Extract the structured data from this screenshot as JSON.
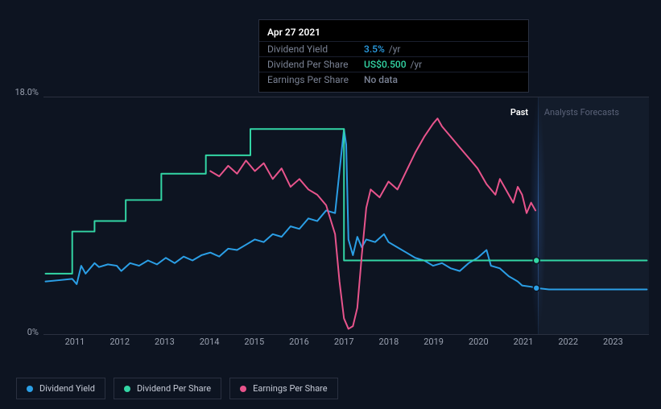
{
  "tooltip": {
    "date": "Apr 27 2021",
    "rows": [
      {
        "label": "Dividend Yield",
        "value": "3.5%",
        "unit": "/yr",
        "color": "#2b9fe6"
      },
      {
        "label": "Dividend Per Share",
        "value": "US$0.500",
        "unit": "/yr",
        "color": "#33d6a5"
      },
      {
        "label": "Earnings Per Share",
        "value": "No data",
        "unit": "",
        "color": "#7a8294"
      }
    ]
  },
  "chart": {
    "background": "#0d1421",
    "grid_color": "#2a3040",
    "y_axis": {
      "min": 0,
      "max": 18,
      "labels": [
        {
          "v": 0,
          "t": "0%"
        },
        {
          "v": 18,
          "t": "18.0%"
        }
      ]
    },
    "x_axis": {
      "min": 2010.3,
      "max": 2023.8,
      "ticks": [
        2011,
        2012,
        2013,
        2014,
        2015,
        2016,
        2017,
        2018,
        2019,
        2020,
        2021,
        2022,
        2023
      ]
    },
    "past_end_x": 2021.32,
    "sections": {
      "past": "Past",
      "forecast": "Analysts Forecasts"
    },
    "cursor_x": 2021.32,
    "series": [
      {
        "name": "Dividend Yield",
        "color": "#2b9fe6",
        "end_dot": true,
        "points": [
          [
            2010.3,
            4.0
          ],
          [
            2010.6,
            4.1
          ],
          [
            2010.9,
            4.2
          ],
          [
            2011.0,
            3.8
          ],
          [
            2011.1,
            5.2
          ],
          [
            2011.2,
            4.6
          ],
          [
            2011.4,
            5.4
          ],
          [
            2011.5,
            5.1
          ],
          [
            2011.7,
            5.3
          ],
          [
            2011.9,
            5.2
          ],
          [
            2012.0,
            4.8
          ],
          [
            2012.2,
            5.4
          ],
          [
            2012.4,
            5.2
          ],
          [
            2012.6,
            5.6
          ],
          [
            2012.8,
            5.3
          ],
          [
            2013.0,
            5.8
          ],
          [
            2013.2,
            5.4
          ],
          [
            2013.4,
            5.9
          ],
          [
            2013.6,
            5.6
          ],
          [
            2013.8,
            6.0
          ],
          [
            2014.0,
            6.2
          ],
          [
            2014.2,
            5.9
          ],
          [
            2014.4,
            6.5
          ],
          [
            2014.6,
            6.4
          ],
          [
            2014.8,
            6.8
          ],
          [
            2015.0,
            7.2
          ],
          [
            2015.2,
            7.0
          ],
          [
            2015.4,
            7.6
          ],
          [
            2015.6,
            7.4
          ],
          [
            2015.8,
            8.2
          ],
          [
            2016.0,
            8.0
          ],
          [
            2016.2,
            8.8
          ],
          [
            2016.4,
            8.6
          ],
          [
            2016.6,
            9.4
          ],
          [
            2016.8,
            9.2
          ],
          [
            2017.0,
            15.6
          ],
          [
            2017.05,
            14.4
          ],
          [
            2017.1,
            7.2
          ],
          [
            2017.2,
            6.0
          ],
          [
            2017.3,
            7.4
          ],
          [
            2017.4,
            6.6
          ],
          [
            2017.5,
            7.2
          ],
          [
            2017.7,
            7.0
          ],
          [
            2017.9,
            7.6
          ],
          [
            2018.0,
            7.0
          ],
          [
            2018.2,
            6.6
          ],
          [
            2018.4,
            6.2
          ],
          [
            2018.6,
            5.8
          ],
          [
            2018.8,
            5.6
          ],
          [
            2019.0,
            5.2
          ],
          [
            2019.2,
            5.4
          ],
          [
            2019.4,
            5.0
          ],
          [
            2019.6,
            4.8
          ],
          [
            2019.8,
            5.4
          ],
          [
            2020.0,
            5.8
          ],
          [
            2020.2,
            6.4
          ],
          [
            2020.3,
            5.2
          ],
          [
            2020.5,
            5.0
          ],
          [
            2020.7,
            4.4
          ],
          [
            2020.9,
            4.0
          ],
          [
            2021.0,
            3.7
          ],
          [
            2021.2,
            3.6
          ],
          [
            2021.32,
            3.5
          ],
          [
            2021.6,
            3.4
          ],
          [
            2022.0,
            3.4
          ],
          [
            2022.5,
            3.4
          ],
          [
            2023.0,
            3.4
          ],
          [
            2023.8,
            3.4
          ]
        ]
      },
      {
        "name": "Dividend Per Share",
        "color": "#33d6a5",
        "end_dot": true,
        "points": [
          [
            2010.3,
            4.6
          ],
          [
            2010.9,
            4.6
          ],
          [
            2010.9,
            7.8
          ],
          [
            2011.4,
            7.8
          ],
          [
            2011.4,
            8.6
          ],
          [
            2012.1,
            8.6
          ],
          [
            2012.1,
            10.2
          ],
          [
            2012.9,
            10.2
          ],
          [
            2012.9,
            12.2
          ],
          [
            2013.9,
            12.2
          ],
          [
            2013.9,
            13.6
          ],
          [
            2014.9,
            13.6
          ],
          [
            2014.9,
            15.6
          ],
          [
            2017.0,
            15.6
          ],
          [
            2017.0,
            5.6
          ],
          [
            2021.32,
            5.6
          ],
          [
            2023.8,
            5.6
          ]
        ]
      },
      {
        "name": "Earnings Per Share",
        "color": "#e8548c",
        "end_dot": false,
        "points": [
          [
            2014.0,
            12.4
          ],
          [
            2014.2,
            12.0
          ],
          [
            2014.4,
            12.8
          ],
          [
            2014.6,
            12.2
          ],
          [
            2014.8,
            13.2
          ],
          [
            2015.0,
            12.4
          ],
          [
            2015.2,
            13.0
          ],
          [
            2015.4,
            11.8
          ],
          [
            2015.6,
            12.6
          ],
          [
            2015.8,
            11.2
          ],
          [
            2016.0,
            11.8
          ],
          [
            2016.2,
            11.0
          ],
          [
            2016.4,
            10.6
          ],
          [
            2016.6,
            9.8
          ],
          [
            2016.8,
            7.6
          ],
          [
            2016.9,
            4.0
          ],
          [
            2017.0,
            1.2
          ],
          [
            2017.1,
            0.4
          ],
          [
            2017.2,
            0.6
          ],
          [
            2017.3,
            2.0
          ],
          [
            2017.4,
            6.0
          ],
          [
            2017.5,
            9.6
          ],
          [
            2017.6,
            11.0
          ],
          [
            2017.8,
            10.4
          ],
          [
            2018.0,
            11.6
          ],
          [
            2018.2,
            11.0
          ],
          [
            2018.4,
            12.4
          ],
          [
            2018.6,
            13.8
          ],
          [
            2018.8,
            15.0
          ],
          [
            2019.0,
            16.0
          ],
          [
            2019.1,
            16.4
          ],
          [
            2019.2,
            15.8
          ],
          [
            2019.4,
            15.0
          ],
          [
            2019.6,
            14.2
          ],
          [
            2019.8,
            13.4
          ],
          [
            2020.0,
            12.6
          ],
          [
            2020.2,
            11.4
          ],
          [
            2020.4,
            10.6
          ],
          [
            2020.5,
            11.8
          ],
          [
            2020.6,
            11.2
          ],
          [
            2020.8,
            10.0
          ],
          [
            2020.9,
            11.2
          ],
          [
            2021.0,
            10.6
          ],
          [
            2021.1,
            9.2
          ],
          [
            2021.2,
            10.0
          ],
          [
            2021.3,
            9.4
          ]
        ]
      }
    ]
  },
  "legend": [
    {
      "label": "Dividend Yield",
      "color": "#2b9fe6"
    },
    {
      "label": "Dividend Per Share",
      "color": "#33d6a5"
    },
    {
      "label": "Earnings Per Share",
      "color": "#e8548c"
    }
  ]
}
